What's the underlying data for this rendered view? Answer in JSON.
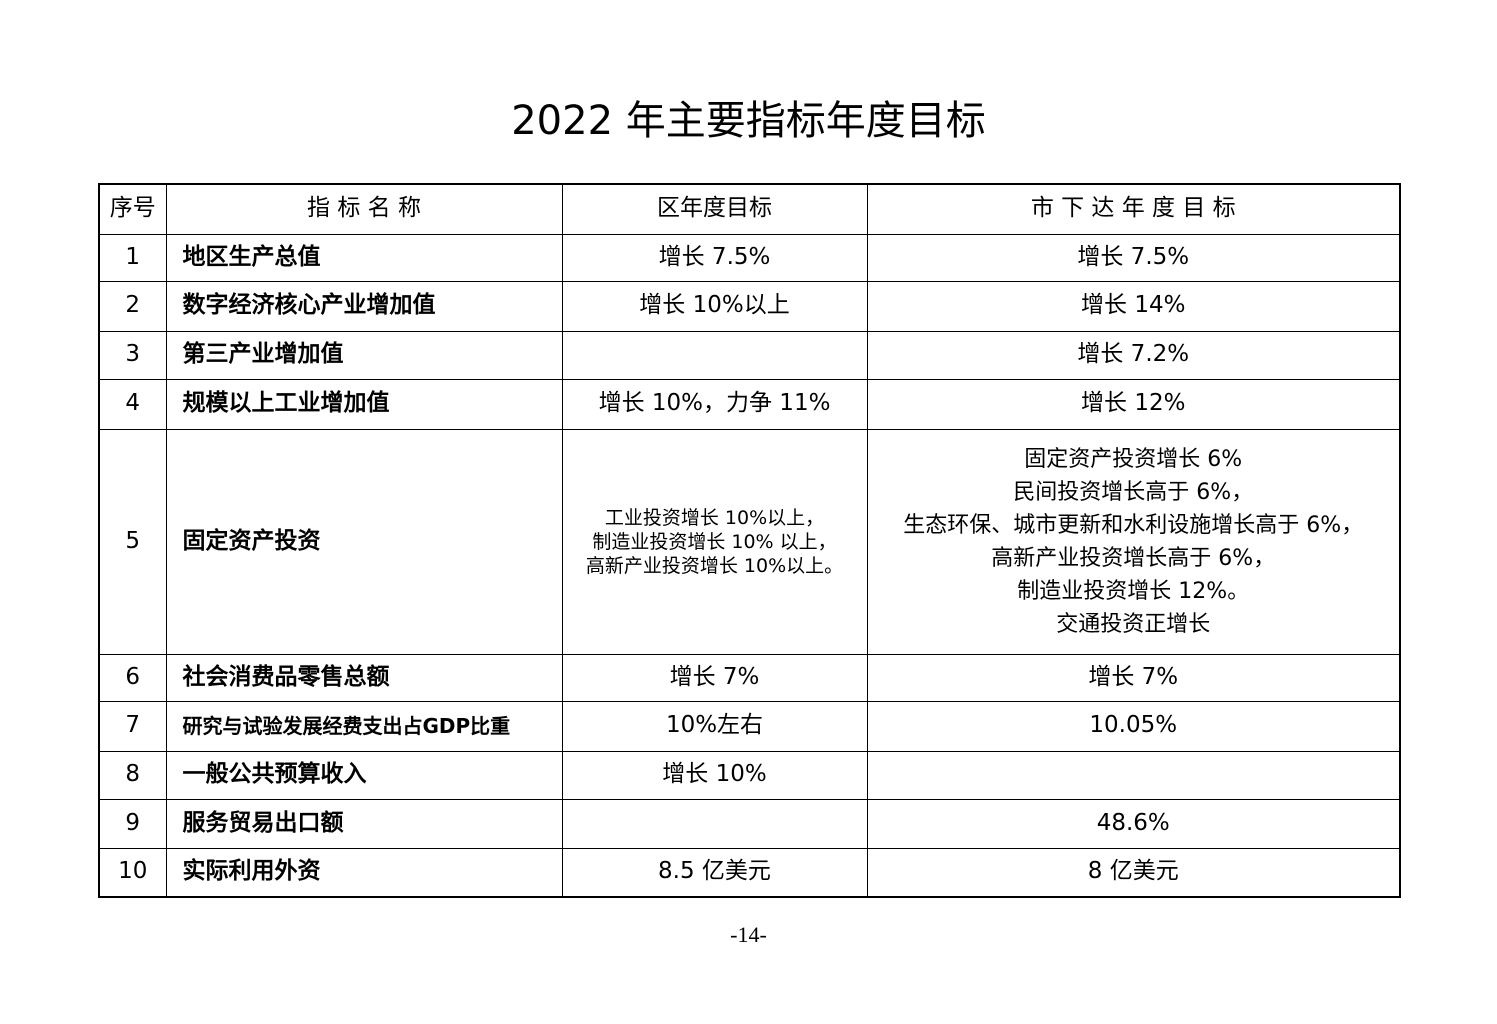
{
  "title": "2022 年主要指标年度目标",
  "table": {
    "header": [
      "序号",
      "指 标 名 称",
      "区年度目标",
      "市 下 达 年 度 目 标"
    ],
    "rows": [
      [
        "1",
        "地区生产总值",
        [
          "增长 7.5%"
        ],
        [
          "增长 7.5%"
        ]
      ],
      [
        "2",
        "数字经济核心产业增加值",
        [
          "增长 10%以上"
        ],
        [
          "增长 14%"
        ]
      ],
      [
        "3",
        "第三产业增加值",
        null,
        [
          "增长 7.2%"
        ]
      ],
      [
        "4",
        "规模以上工业增加值",
        [
          "增长 10%，力争 11%"
        ],
        [
          "增长 12%"
        ]
      ],
      [
        "5",
        "固定资产投资",
        [
          "工业投资增长 10%以上，",
          "制造业投资增长 10% 以上，",
          "高新产业投资增长 10%以上。"
        ],
        [
          "固定资产投资增长 6%",
          "民间投资增长高于 6%，",
          "生态环保、城市更新和水利设施增长高于 6%，",
          "高新产业投资增长高于 6%，",
          "制造业投资增长 12%。",
          "交通投资正增长"
        ]
      ],
      [
        "6",
        "社会消费品零售总额",
        [
          "增长 7%"
        ],
        [
          "增长 7%"
        ]
      ],
      [
        "7",
        "研究与试验发展经费支出占GDP比重",
        [
          "10%左右"
        ],
        [
          "10.05%"
        ]
      ],
      [
        "8",
        "一般公共预算收入",
        [
          "增长 10%"
        ],
        null
      ],
      [
        "9",
        "服务贸易出口额",
        null,
        [
          "48.6%"
        ]
      ],
      [
        "10",
        "实际利用外资",
        [
          "8.5 亿美元"
        ],
        [
          "8 亿美元"
        ]
      ]
    ]
  },
  "page_number": "-14-"
}
